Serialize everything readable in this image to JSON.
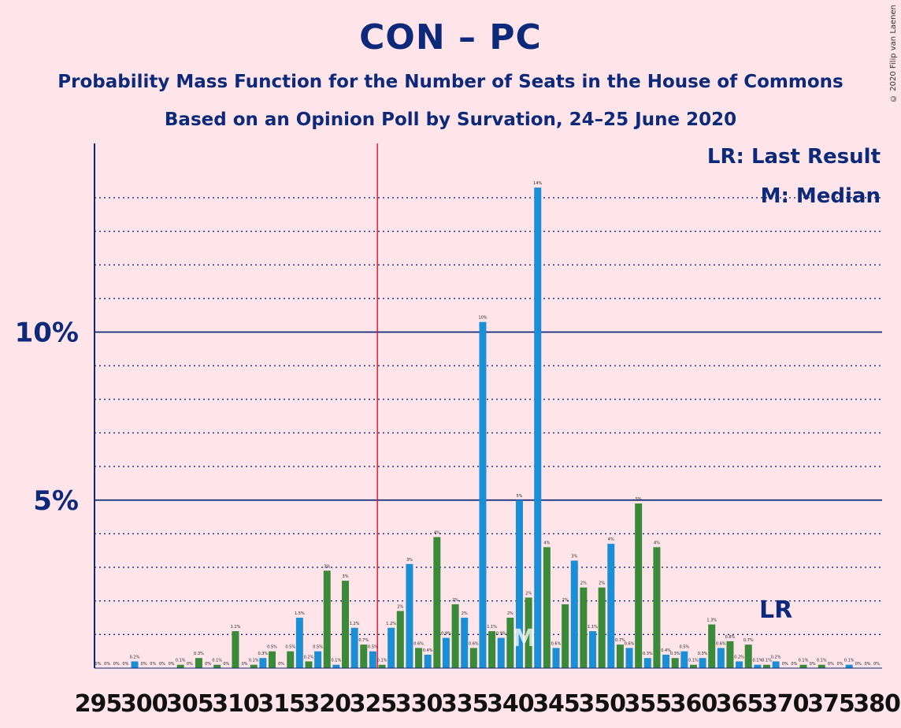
{
  "header": {
    "title": "CON – PC",
    "subtitle1": "Probability Mass Function for the Number of Seats in the House of Commons",
    "subtitle2": "Based on an Opinion Poll by Survation, 24–25 June 2020",
    "copyright": "© 2020 Filip van Laenen"
  },
  "legend": {
    "lr": "LR: Last Result",
    "median": "M: Median"
  },
  "colors": {
    "background": "#ffe4ea",
    "text": "#0d2a7a",
    "blue": "#1a8fd6",
    "green": "#3a8a3a",
    "majority_line": "#e8102a"
  },
  "chart_data": {
    "type": "bar",
    "ylabel": "",
    "xlabel": "",
    "y_ticks": [
      "5%",
      "10%"
    ],
    "x_ticks": [
      295,
      300,
      305,
      310,
      315,
      320,
      325,
      330,
      335,
      340,
      345,
      350,
      355,
      360,
      365,
      370,
      375,
      380
    ],
    "ylim": [
      0,
      15.5
    ],
    "grid": "dotted every 1%, solid at 5% and 10%",
    "majority_line_seat": 325.5,
    "median_seat": 341,
    "median_label": "M",
    "last_result_seat": 369,
    "last_result_label": "LR",
    "seats": [
      295,
      296,
      297,
      298,
      299,
      300,
      301,
      302,
      303,
      304,
      305,
      306,
      307,
      308,
      309,
      310,
      311,
      312,
      313,
      314,
      315,
      316,
      317,
      318,
      319,
      320,
      321,
      322,
      323,
      324,
      325,
      326,
      327,
      328,
      329,
      330,
      331,
      332,
      333,
      334,
      335,
      336,
      337,
      338,
      339,
      340,
      341,
      342,
      343,
      344,
      345,
      346,
      347,
      348,
      349,
      350,
      351,
      352,
      353,
      354,
      355,
      356,
      357,
      358,
      359,
      360,
      361,
      362,
      363,
      364,
      365,
      366,
      367,
      368,
      369,
      370,
      371,
      372,
      373,
      374,
      375,
      376,
      377,
      378,
      379,
      380
    ],
    "values": [
      0,
      0,
      0,
      0,
      0.2,
      0,
      0,
      0,
      0,
      0.1,
      0,
      0.3,
      0,
      0.1,
      0,
      1.1,
      0,
      0.1,
      0.3,
      0.5,
      0,
      0.5,
      1.5,
      0.2,
      0.5,
      2.9,
      0.1,
      2.6,
      1.2,
      0.7,
      0.5,
      0.1,
      1.2,
      1.7,
      3.1,
      0.6,
      0.4,
      3.9,
      0.9,
      1.9,
      1.5,
      0.6,
      10.3,
      1.1,
      0.9,
      1.5,
      5.0,
      2.1,
      14.3,
      3.6,
      0.6,
      1.9,
      3.2,
      2.4,
      1.1,
      2.4,
      3.7,
      0.7,
      0.6,
      4.9,
      0.3,
      3.6,
      0.4,
      0.3,
      0.5,
      0.1,
      0.3,
      1.3,
      0.6,
      0.8,
      0.2,
      0.7,
      0.1,
      0.1,
      0.2,
      0,
      0,
      0.1,
      0,
      0.1,
      0,
      0,
      0.1,
      0,
      0,
      0
    ],
    "value_labels": [
      "0%",
      "0%",
      "0%",
      "0%",
      "0.2%",
      "0%",
      "0%",
      "0%",
      "0%",
      "0.1%",
      "0%",
      "0.3%",
      "0%",
      "0.1%",
      "0%",
      "1.1%",
      "0%",
      "0.1%",
      "0.3%",
      "0.5%",
      "0%",
      "0.5%",
      "1.5%",
      "0.2%",
      "0.5%",
      "3%",
      "0.1%",
      "3%",
      "1.2%",
      "0.7%",
      "0.5%",
      "0.1%",
      "1.2%",
      "2%",
      "3%",
      "0.6%",
      "0.4%",
      "4%",
      "0.9%",
      "2%",
      "2%",
      "0.6%",
      "10%",
      "1.1%",
      "0.9%",
      "2%",
      "5%",
      "2%",
      "14%",
      "4%",
      "0.6%",
      "2%",
      "3%",
      "2%",
      "1.1%",
      "2%",
      "4%",
      "0.7%",
      "0.6%",
      "5%",
      "0.3%",
      "4%",
      "0.4%",
      "0.3%",
      "0.5%",
      "0.1%",
      "0.3%",
      "1.3%",
      "0.6%",
      "0.8%",
      "0.2%",
      "0.7%",
      "0.1%",
      "0.1%",
      "0.2%",
      "0%",
      "0%",
      "0.1%",
      "0%",
      "0.1%",
      "0%",
      "0%",
      "0.1%",
      "0%",
      "0%",
      "0%"
    ]
  }
}
